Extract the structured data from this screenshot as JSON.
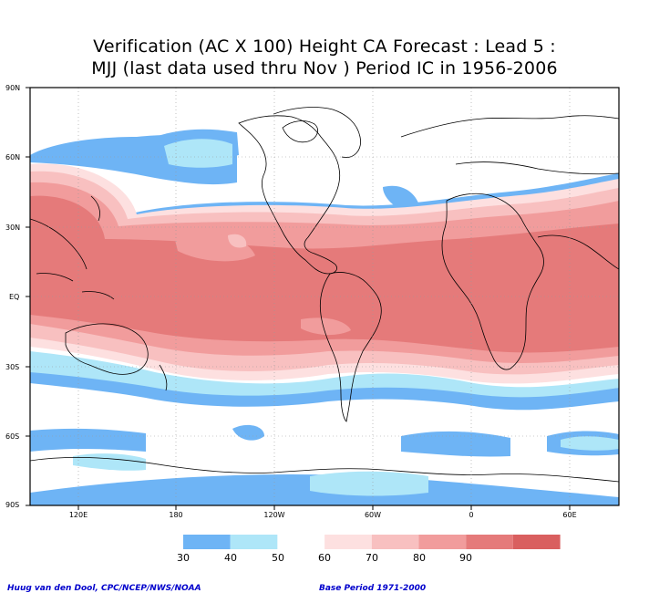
{
  "title": {
    "line1": "Verification (AC X 100) Height CA Forecast : Lead 5 :",
    "line2": "MJJ (last data used thru Nov ) Period IC in 1956-2006"
  },
  "axes": {
    "lat_labels": [
      "90N",
      "60N",
      "30N",
      "EQ",
      "30S",
      "60S",
      "90S"
    ],
    "lon_labels": [
      "120E",
      "180",
      "120W",
      "60W",
      "0",
      "60E"
    ]
  },
  "legend": {
    "values": [
      "30",
      "40",
      "50",
      "60",
      "70",
      "80",
      "90"
    ],
    "colors": [
      "#6eb4f5",
      "#aee6f8",
      "#ffffff",
      "#fde0e0",
      "#f8c0c0",
      "#f19c9c",
      "#e57a7a",
      "#d95f5f"
    ]
  },
  "footer": {
    "left": "Huug van den Dool, CPC/NCEP/NWS/NOAA",
    "right": "Base Period 1971-2000"
  }
}
